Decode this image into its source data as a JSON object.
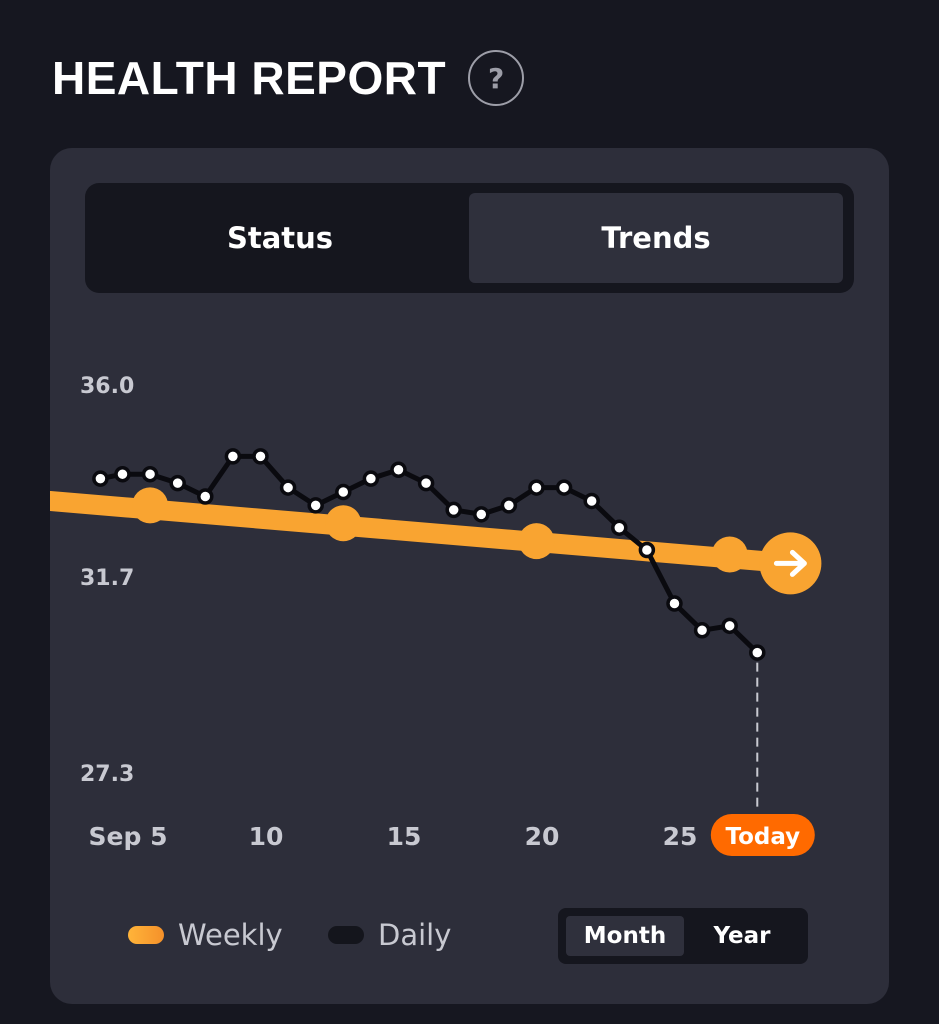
{
  "header": {
    "title": "HEALTH REPORT",
    "help_glyph": "?"
  },
  "tabs": {
    "status_label": "Status",
    "trends_label": "Trends",
    "active": "Trends"
  },
  "legend": {
    "weekly_label": "Weekly",
    "daily_label": "Daily"
  },
  "range": {
    "month_label": "Month",
    "year_label": "Year",
    "active": "Month"
  },
  "icons": {
    "help": "question-circle-icon",
    "trend_arrow": "arrow-right-icon"
  },
  "colors": {
    "weekly": "#f9a431",
    "daily": "#0a0a0f",
    "today_badge": "#ff6a00",
    "card": "#2d2e3a"
  },
  "chart_data": {
    "type": "line",
    "ylim": [
      27.3,
      36.0
    ],
    "y_ticks": [
      "36.0",
      "31.7",
      "27.3"
    ],
    "x_ticks": [
      {
        "day": 5,
        "label": "Sep 5"
      },
      {
        "day": 10,
        "label": "10"
      },
      {
        "day": 15,
        "label": "15"
      },
      {
        "day": 20,
        "label": "20"
      },
      {
        "day": 25,
        "label": "25"
      },
      {
        "day": 28,
        "label": "Today"
      }
    ],
    "series": [
      {
        "name": "Daily",
        "x": [
          4,
          4.8,
          5.8,
          6.8,
          7.8,
          8.8,
          9.8,
          10.8,
          11.8,
          12.8,
          13.8,
          14.8,
          15.8,
          16.8,
          17.8,
          18.8,
          19.8,
          20.8,
          21.8,
          22.8,
          23.8,
          24.8,
          25.8,
          26.8,
          27.8
        ],
        "values": [
          33.9,
          34.0,
          34.0,
          33.8,
          33.5,
          34.4,
          34.4,
          33.7,
          33.3,
          33.6,
          33.9,
          34.1,
          33.8,
          33.2,
          33.1,
          33.3,
          33.7,
          33.7,
          33.4,
          32.8,
          32.3,
          31.1,
          30.5,
          30.6,
          30.0
        ]
      },
      {
        "name": "Weekly",
        "x": [
          4,
          5.8,
          12.8,
          19.8,
          26.8,
          29.0
        ],
        "values": [
          33.4,
          33.3,
          32.9,
          32.5,
          32.2,
          32.0
        ]
      }
    ],
    "today_value": 29.6
  }
}
